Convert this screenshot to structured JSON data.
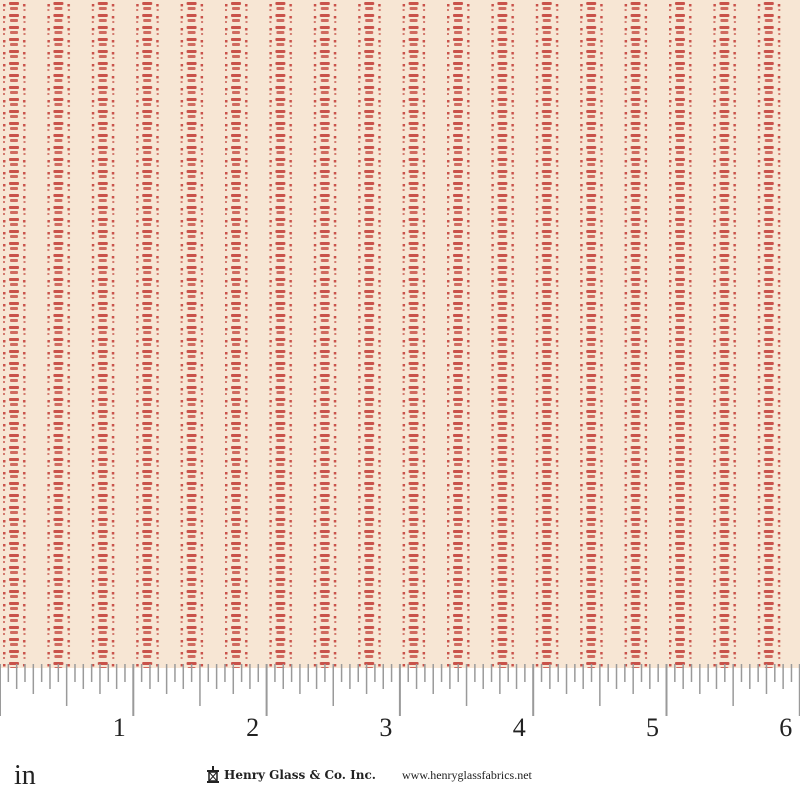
{
  "fabric": {
    "background_color": "#f7e6d4",
    "print_color": "#c9524a",
    "pattern": "vertical stripes of small red dashes and dots"
  },
  "ruler": {
    "unit_label": "in",
    "numbers": [
      "1",
      "2",
      "3",
      "4",
      "5",
      "6"
    ],
    "tick_color": "#9a9a9a"
  },
  "branding": {
    "company": "Henry Glass & Co. Inc.",
    "website": "www.henryglassfabrics.net",
    "logo_icon": "spool-icon"
  }
}
